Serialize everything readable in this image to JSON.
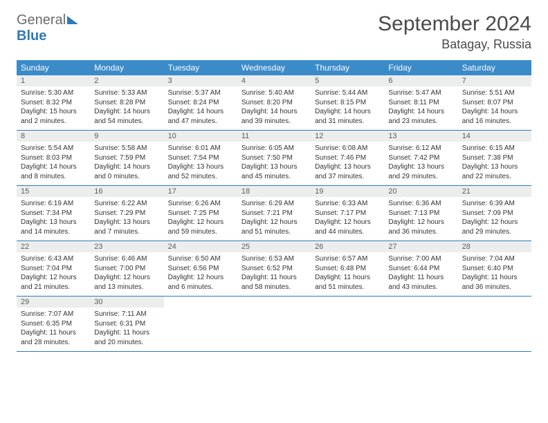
{
  "logo": {
    "text1": "General",
    "text2": "Blue"
  },
  "title": "September 2024",
  "location": "Batagay, Russia",
  "colors": {
    "header_bg": "#3b8bc9",
    "header_text": "#ffffff",
    "daynum_bg": "#eceeee",
    "border": "#2f79b9",
    "body_text": "#333333",
    "title_text": "#4a4a4a",
    "logo_gray": "#6b6b6b",
    "logo_blue": "#2f79b9",
    "page_bg": "#ffffff"
  },
  "typography": {
    "title_fontsize": 30,
    "location_fontsize": 18,
    "dow_fontsize": 12,
    "daynum_fontsize": 11,
    "cell_fontsize": 10
  },
  "days_of_week": [
    "Sunday",
    "Monday",
    "Tuesday",
    "Wednesday",
    "Thursday",
    "Friday",
    "Saturday"
  ],
  "weeks": [
    [
      {
        "n": "1",
        "sunrise": "5:30 AM",
        "sunset": "8:32 PM",
        "daylight": "15 hours and 2 minutes."
      },
      {
        "n": "2",
        "sunrise": "5:33 AM",
        "sunset": "8:28 PM",
        "daylight": "14 hours and 54 minutes."
      },
      {
        "n": "3",
        "sunrise": "5:37 AM",
        "sunset": "8:24 PM",
        "daylight": "14 hours and 47 minutes."
      },
      {
        "n": "4",
        "sunrise": "5:40 AM",
        "sunset": "8:20 PM",
        "daylight": "14 hours and 39 minutes."
      },
      {
        "n": "5",
        "sunrise": "5:44 AM",
        "sunset": "8:15 PM",
        "daylight": "14 hours and 31 minutes."
      },
      {
        "n": "6",
        "sunrise": "5:47 AM",
        "sunset": "8:11 PM",
        "daylight": "14 hours and 23 minutes."
      },
      {
        "n": "7",
        "sunrise": "5:51 AM",
        "sunset": "8:07 PM",
        "daylight": "14 hours and 16 minutes."
      }
    ],
    [
      {
        "n": "8",
        "sunrise": "5:54 AM",
        "sunset": "8:03 PM",
        "daylight": "14 hours and 8 minutes."
      },
      {
        "n": "9",
        "sunrise": "5:58 AM",
        "sunset": "7:59 PM",
        "daylight": "14 hours and 0 minutes."
      },
      {
        "n": "10",
        "sunrise": "6:01 AM",
        "sunset": "7:54 PM",
        "daylight": "13 hours and 52 minutes."
      },
      {
        "n": "11",
        "sunrise": "6:05 AM",
        "sunset": "7:50 PM",
        "daylight": "13 hours and 45 minutes."
      },
      {
        "n": "12",
        "sunrise": "6:08 AM",
        "sunset": "7:46 PM",
        "daylight": "13 hours and 37 minutes."
      },
      {
        "n": "13",
        "sunrise": "6:12 AM",
        "sunset": "7:42 PM",
        "daylight": "13 hours and 29 minutes."
      },
      {
        "n": "14",
        "sunrise": "6:15 AM",
        "sunset": "7:38 PM",
        "daylight": "13 hours and 22 minutes."
      }
    ],
    [
      {
        "n": "15",
        "sunrise": "6:19 AM",
        "sunset": "7:34 PM",
        "daylight": "13 hours and 14 minutes."
      },
      {
        "n": "16",
        "sunrise": "6:22 AM",
        "sunset": "7:29 PM",
        "daylight": "13 hours and 7 minutes."
      },
      {
        "n": "17",
        "sunrise": "6:26 AM",
        "sunset": "7:25 PM",
        "daylight": "12 hours and 59 minutes."
      },
      {
        "n": "18",
        "sunrise": "6:29 AM",
        "sunset": "7:21 PM",
        "daylight": "12 hours and 51 minutes."
      },
      {
        "n": "19",
        "sunrise": "6:33 AM",
        "sunset": "7:17 PM",
        "daylight": "12 hours and 44 minutes."
      },
      {
        "n": "20",
        "sunrise": "6:36 AM",
        "sunset": "7:13 PM",
        "daylight": "12 hours and 36 minutes."
      },
      {
        "n": "21",
        "sunrise": "6:39 AM",
        "sunset": "7:09 PM",
        "daylight": "12 hours and 29 minutes."
      }
    ],
    [
      {
        "n": "22",
        "sunrise": "6:43 AM",
        "sunset": "7:04 PM",
        "daylight": "12 hours and 21 minutes."
      },
      {
        "n": "23",
        "sunrise": "6:46 AM",
        "sunset": "7:00 PM",
        "daylight": "12 hours and 13 minutes."
      },
      {
        "n": "24",
        "sunrise": "6:50 AM",
        "sunset": "6:56 PM",
        "daylight": "12 hours and 6 minutes."
      },
      {
        "n": "25",
        "sunrise": "6:53 AM",
        "sunset": "6:52 PM",
        "daylight": "11 hours and 58 minutes."
      },
      {
        "n": "26",
        "sunrise": "6:57 AM",
        "sunset": "6:48 PM",
        "daylight": "11 hours and 51 minutes."
      },
      {
        "n": "27",
        "sunrise": "7:00 AM",
        "sunset": "6:44 PM",
        "daylight": "11 hours and 43 minutes."
      },
      {
        "n": "28",
        "sunrise": "7:04 AM",
        "sunset": "6:40 PM",
        "daylight": "11 hours and 36 minutes."
      }
    ],
    [
      {
        "n": "29",
        "sunrise": "7:07 AM",
        "sunset": "6:35 PM",
        "daylight": "11 hours and 28 minutes."
      },
      {
        "n": "30",
        "sunrise": "7:11 AM",
        "sunset": "6:31 PM",
        "daylight": "11 hours and 20 minutes."
      },
      null,
      null,
      null,
      null,
      null
    ]
  ],
  "labels": {
    "sunrise": "Sunrise: ",
    "sunset": "Sunset: ",
    "daylight": "Daylight: "
  }
}
